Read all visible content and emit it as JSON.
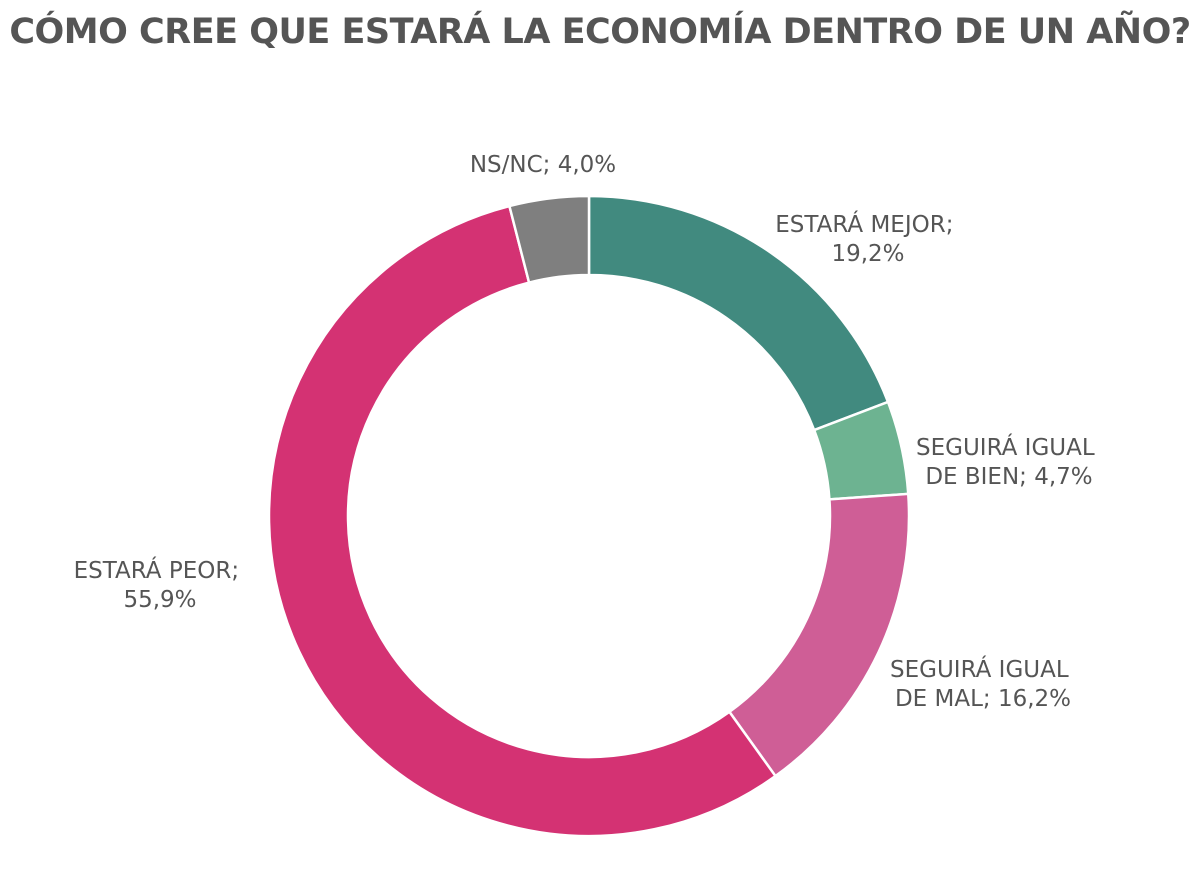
{
  "chart_data": {
    "type": "pie",
    "title": "CÓMO CREE QUE ESTARÁ LA ECONOMÍA DENTRO DE UN AÑO?",
    "style": "donut",
    "slices": [
      {
        "label": "ESTARÁ MEJOR;",
        "value_text": "19,2%",
        "value": 19.2,
        "color": "#418a7f"
      },
      {
        "label": "SEGUIRÁ IGUAL",
        "label2": "DE BIEN; 4,7%",
        "value": 4.7,
        "color": "#6db391"
      },
      {
        "label": "SEGUIRÁ IGUAL",
        "label2": "DE MAL; 16,2%",
        "value": 16.2,
        "color": "#cf5e96"
      },
      {
        "label": "ESTARÁ PEOR;",
        "value_text": "55,9%",
        "value": 55.9,
        "color": "#d43273"
      },
      {
        "label": "NS/NC; 4,0%",
        "value": 4.0,
        "color": "#7f7f7f"
      }
    ]
  }
}
